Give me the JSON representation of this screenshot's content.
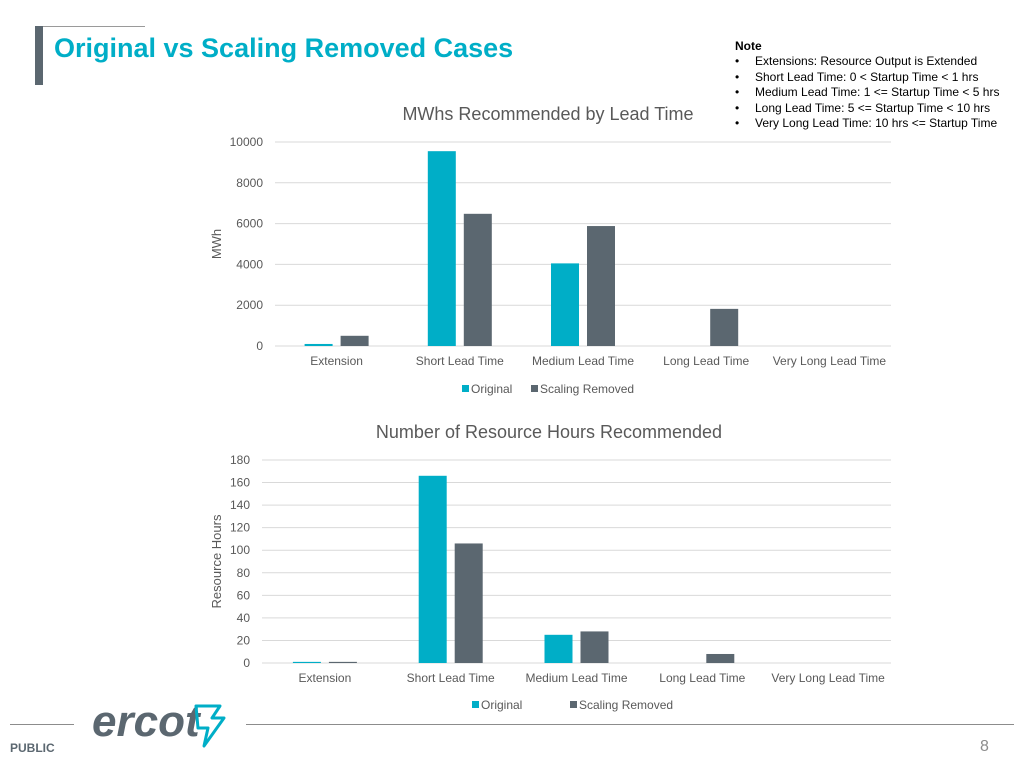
{
  "slide": {
    "title": "Original vs Scaling Removed Cases",
    "footer_label": "PUBLIC",
    "page_number": "8",
    "logo_text": "ercot"
  },
  "note": {
    "heading": "Note",
    "items": [
      "Extensions: Resource Output is Extended",
      "Short Lead Time: 0 < Startup Time < 1 hrs",
      "Medium Lead Time: 1 <= Startup Time < 5 hrs",
      "Long Lead Time: 5 <= Startup Time < 10 hrs",
      "Very Long Lead Time: 10 hrs <= Startup Time"
    ]
  },
  "colors": {
    "original": "#00aec7",
    "scaling_removed": "#5b6770",
    "title": "#00aec7",
    "grid": "#d9d9d9"
  },
  "chart_data": [
    {
      "type": "bar",
      "title": "MWhs Recommended by Lead Time",
      "xlabel": "",
      "ylabel": "MWh",
      "ylim": [
        0,
        10000
      ],
      "yticks": [
        0,
        2000,
        4000,
        6000,
        8000,
        10000
      ],
      "categories": [
        "Extension",
        "Short Lead Time",
        "Medium Lead Time",
        "Long Lead Time",
        "Very Long Lead Time"
      ],
      "series": [
        {
          "name": "Original",
          "values": [
            100,
            9550,
            4050,
            0,
            0
          ]
        },
        {
          "name": "Scaling Removed",
          "values": [
            500,
            6480,
            5880,
            1820,
            0
          ]
        }
      ],
      "grid": true,
      "legend": "bottom-center"
    },
    {
      "type": "bar",
      "title": "Number of Resource Hours Recommended",
      "xlabel": "",
      "ylabel": "Resource Hours",
      "ylim": [
        0,
        180
      ],
      "yticks": [
        0,
        20,
        40,
        60,
        80,
        100,
        120,
        140,
        160,
        180
      ],
      "categories": [
        "Extension",
        "Short Lead Time",
        "Medium Lead Time",
        "Long Lead Time",
        "Very Long Lead Time"
      ],
      "series": [
        {
          "name": "Original",
          "values": [
            1,
            166,
            25,
            0,
            0
          ]
        },
        {
          "name": "Scaling Removed",
          "values": [
            1,
            106,
            28,
            8,
            0
          ]
        }
      ],
      "grid": true,
      "legend": "bottom-center"
    }
  ]
}
